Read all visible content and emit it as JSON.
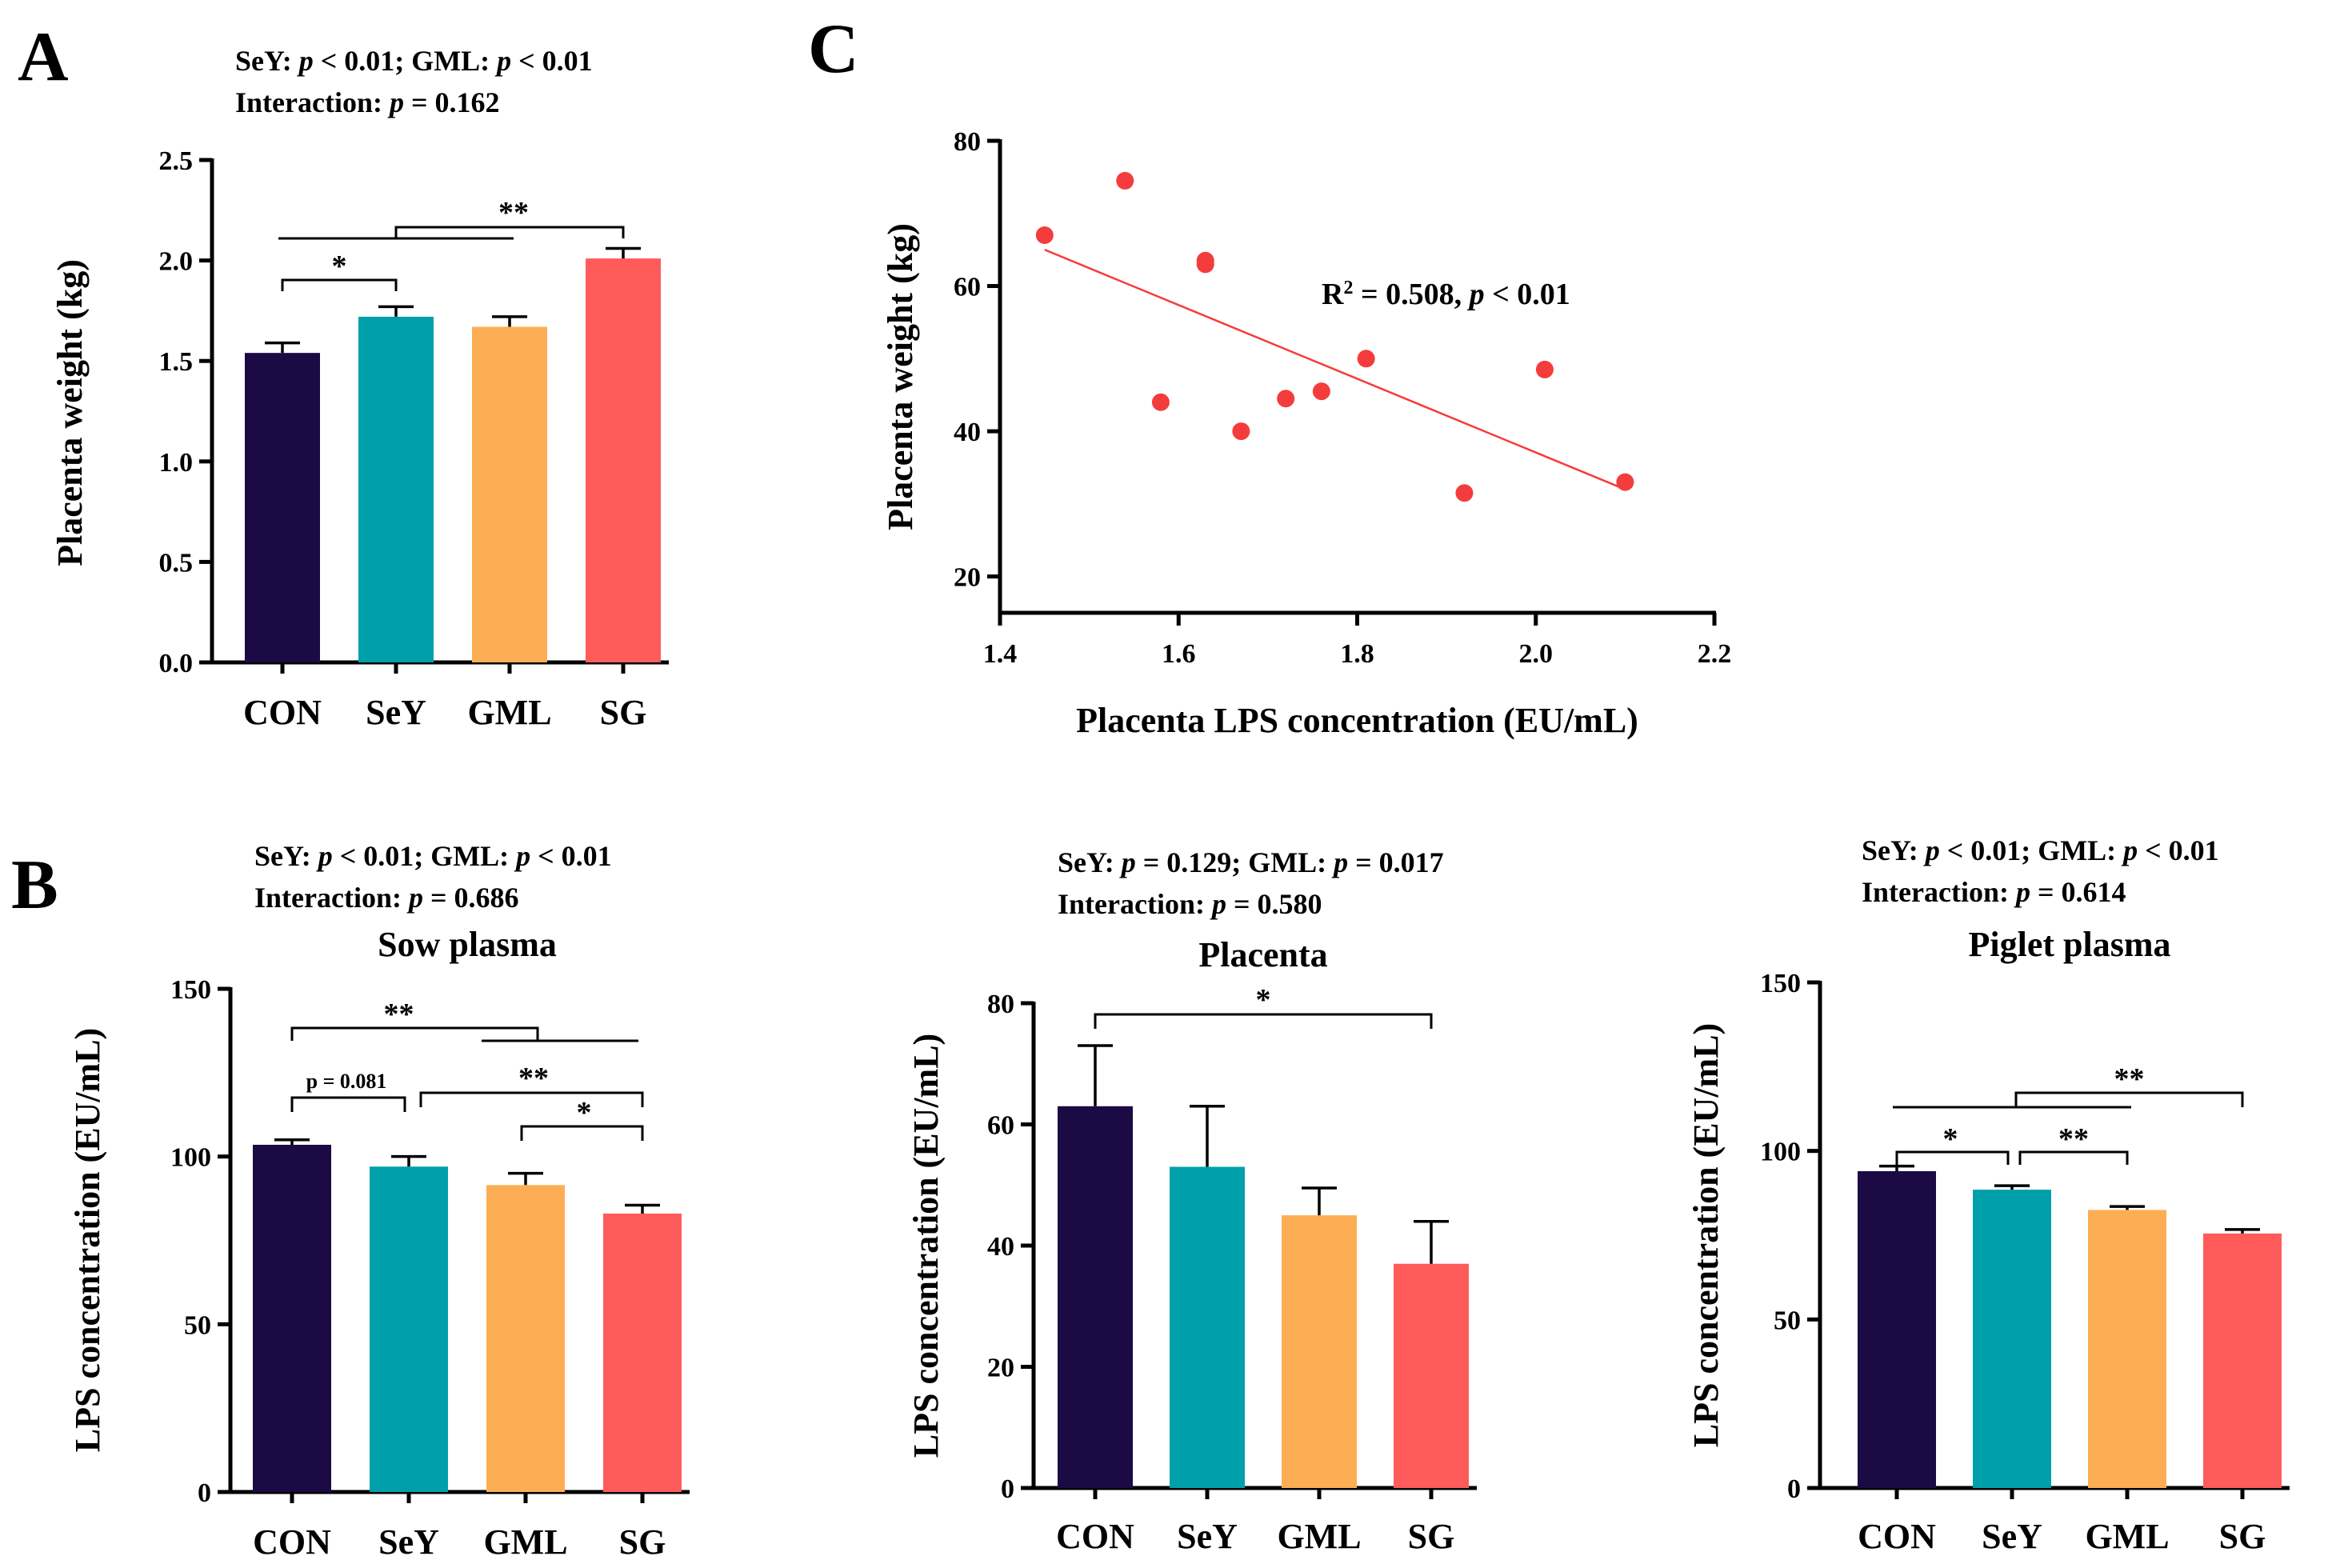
{
  "colors": {
    "CON": "#1b0a44",
    "SeY": "#00a0aa",
    "GML": "#fdae54",
    "SG": "#ff5b5b",
    "scatter": "#f53c3c"
  },
  "panels": {
    "A": {
      "letter": "A",
      "stat_line1": {
        "a": "SeY: ",
        "b": "p",
        "c": " < 0.01;  GML: ",
        "d": "p",
        "e": " < 0.01"
      },
      "stat_line2": {
        "a": "Interaction: ",
        "b": "p",
        "c": " = 0.162"
      }
    },
    "B": {
      "letter": "B"
    },
    "C": {
      "letter": "C"
    }
  },
  "chart_data": [
    {
      "id": "A",
      "type": "bar",
      "title": "",
      "categories": [
        "CON",
        "SeY",
        "GML",
        "SG"
      ],
      "values": [
        1.54,
        1.72,
        1.67,
        2.01
      ],
      "errors": [
        0.05,
        0.05,
        0.05,
        0.05
      ],
      "ylabel": "Placenta weight (kg)",
      "xlabel": "",
      "ylim": [
        0,
        2.5
      ],
      "yticks": [
        0.0,
        0.5,
        1.0,
        1.5,
        2.0,
        2.5
      ],
      "ytick_labels": [
        "0.0",
        "0.5",
        "1.0",
        "1.5",
        "2.0",
        "2.5"
      ],
      "significance": [
        {
          "label": "*",
          "from": "CON",
          "to": "SeY"
        },
        {
          "label": "**",
          "from": "CON-GML",
          "to": "SG"
        }
      ]
    },
    {
      "id": "B1",
      "type": "bar",
      "title": "Sow plasma",
      "stat_line1": {
        "a": "SeY: ",
        "b": "p",
        "c": " < 0.01;  GML: ",
        "d": "p",
        "e": " < 0.01"
      },
      "stat_line2": {
        "a": "Interaction: ",
        "b": "p",
        "c": " = 0.686"
      },
      "categories": [
        "CON",
        "SeY",
        "GML",
        "SG"
      ],
      "values": [
        103.5,
        97.0,
        91.5,
        83.0
      ],
      "errors": [
        1.5,
        3.0,
        3.5,
        2.5
      ],
      "ylabel": "LPS concentration (EU/mL)",
      "ylim": [
        0,
        150
      ],
      "yticks": [
        0,
        50,
        100,
        150
      ],
      "ytick_labels": [
        "0",
        "50",
        "100",
        "150"
      ],
      "significance": [
        {
          "label": "**",
          "from": "CON",
          "to": "GML-SG"
        },
        {
          "label": "p = 0.081",
          "from": "CON",
          "to": "SeY"
        },
        {
          "label": "**",
          "from": "SeY",
          "to": "SG"
        },
        {
          "label": "*",
          "from": "GML",
          "to": "SG"
        }
      ]
    },
    {
      "id": "B2",
      "type": "bar",
      "title": "Placenta",
      "stat_line1": {
        "a": "SeY: ",
        "b": "p",
        "c": " = 0.129;  GML: ",
        "d": "p",
        "e": " = 0.017"
      },
      "stat_line2": {
        "a": "Interaction: ",
        "b": "p",
        "c": " = 0.580"
      },
      "categories": [
        "CON",
        "SeY",
        "GML",
        "SG"
      ],
      "values": [
        63.0,
        53.0,
        45.0,
        37.0
      ],
      "errors": [
        10.0,
        10.0,
        4.5,
        7.0
      ],
      "ylabel": "LPS concentration (EU/mL)",
      "ylim": [
        0,
        80
      ],
      "yticks": [
        0,
        20,
        40,
        60,
        80
      ],
      "ytick_labels": [
        "0",
        "20",
        "40",
        "60",
        "80"
      ],
      "significance": [
        {
          "label": "*",
          "from": "CON",
          "to": "SG"
        }
      ]
    },
    {
      "id": "B3",
      "type": "bar",
      "title": "Piglet plasma",
      "stat_line1": {
        "a": "SeY: ",
        "b": "p",
        "c": " < 0.01;  GML: ",
        "d": "p",
        "e": " < 0.01"
      },
      "stat_line2": {
        "a": "Interaction: ",
        "b": "p",
        "c": " = 0.614"
      },
      "categories": [
        "CON",
        "SeY",
        "GML",
        "SG"
      ],
      "values": [
        94.0,
        88.5,
        82.5,
        75.5
      ],
      "errors": [
        1.5,
        1.2,
        1.0,
        1.2
      ],
      "ylabel": "LPS concentration (EU/mL)",
      "ylim": [
        0,
        150
      ],
      "yticks": [
        0,
        50,
        100,
        150
      ],
      "ytick_labels": [
        "0",
        "50",
        "100",
        "150"
      ],
      "significance": [
        {
          "label": "**",
          "from": "CON-GML",
          "to": "SG"
        },
        {
          "label": "*",
          "from": "CON",
          "to": "SeY"
        },
        {
          "label": "**",
          "from": "SeY",
          "to": "GML"
        }
      ]
    },
    {
      "id": "C",
      "type": "scatter",
      "title": "",
      "xlabel": "Placenta LPS concentration (EU/mL)",
      "ylabel": "Placenta weight (kg)",
      "xlim": [
        1.4,
        2.2
      ],
      "ylim": [
        15,
        80
      ],
      "xticks": [
        1.4,
        1.6,
        1.8,
        2.0,
        2.2
      ],
      "xtick_labels": [
        "1.4",
        "1.6",
        "1.8",
        "2.0",
        "2.2"
      ],
      "yticks": [
        20,
        40,
        60,
        80
      ],
      "ytick_labels": [
        "20",
        "40",
        "60",
        "80"
      ],
      "x": [
        1.45,
        1.54,
        1.63,
        1.63,
        1.58,
        1.67,
        1.72,
        1.76,
        1.81,
        2.01,
        1.92,
        2.1
      ],
      "y": [
        67.0,
        74.5,
        63.5,
        63.0,
        44.0,
        40.0,
        44.5,
        45.5,
        50.0,
        48.5,
        31.5,
        33.0
      ],
      "fit": {
        "x": [
          1.45,
          2.1
        ],
        "y": [
          65.0,
          32.0
        ]
      },
      "annotation": {
        "r": "R",
        "sup": "2",
        "rest": " = 0.508,  ",
        "p": "p",
        "pval": " < 0.01"
      }
    }
  ]
}
